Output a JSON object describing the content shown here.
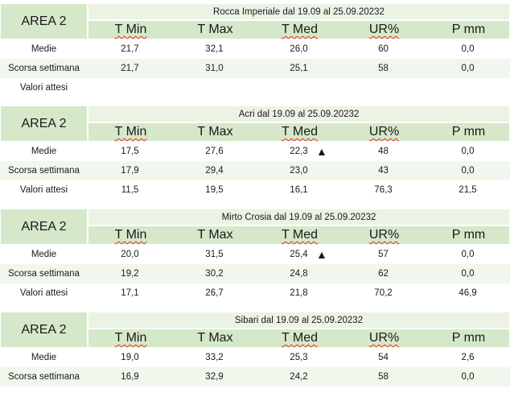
{
  "columns": [
    "T Min",
    "T Max",
    "T Med",
    "UR%",
    "P mm"
  ],
  "row_labels": [
    "Medie",
    "Scorsa settimana",
    "Valori attesi"
  ],
  "trend_icon": "triangle-up-icon",
  "colors": {
    "header_green": "#d5e8ca",
    "title_green": "#ebf3e5",
    "squiggle": "#e0301e"
  },
  "blocks": [
    {
      "area": "AREA 2",
      "title": "Rocca Imperiale  dal 19.09 al 25.09.20232",
      "rows": [
        {
          "values": [
            "21,7",
            "32,1",
            "26,0",
            "60",
            "0,0"
          ],
          "trend": ""
        },
        {
          "values": [
            "21,7",
            "31,0",
            "25,1",
            "58",
            "0,0"
          ],
          "trend": ""
        },
        {
          "values": [
            "",
            "",
            "",
            "",
            ""
          ],
          "trend": ""
        }
      ]
    },
    {
      "area": "AREA 2",
      "title": "Acri dal 19.09 al 25.09.20232",
      "rows": [
        {
          "values": [
            "17,5",
            "27,6",
            "22,3",
            "48",
            "0,0"
          ],
          "trend": "▲"
        },
        {
          "values": [
            "17,9",
            "29,4",
            "23,0",
            "43",
            "0,0"
          ],
          "trend": ""
        },
        {
          "values": [
            "11,5",
            "19,5",
            "16,1",
            "76,3",
            "21,5"
          ],
          "trend": ""
        }
      ]
    },
    {
      "area": "AREA 2",
      "title": "Mirto Crosia dal 19.09 al 25.09.20232",
      "rows": [
        {
          "values": [
            "20,0",
            "31,5",
            "25,4",
            "57",
            "0,0"
          ],
          "trend": "▲"
        },
        {
          "values": [
            "19,2",
            "30,2",
            "24,8",
            "62",
            "0,0"
          ],
          "trend": ""
        },
        {
          "values": [
            "17,1",
            "26,7",
            "21,8",
            "70,2",
            "46,9"
          ],
          "trend": ""
        }
      ]
    },
    {
      "area": "AREA 2",
      "title": "Sibari dal 19.09 al 25.09.20232",
      "rows": [
        {
          "values": [
            "19,0",
            "33,2",
            "25,3",
            "54",
            "2,6"
          ],
          "trend": ""
        },
        {
          "values": [
            "16,9",
            "32,9",
            "24,2",
            "58",
            "0,0"
          ],
          "trend": ""
        }
      ]
    }
  ]
}
